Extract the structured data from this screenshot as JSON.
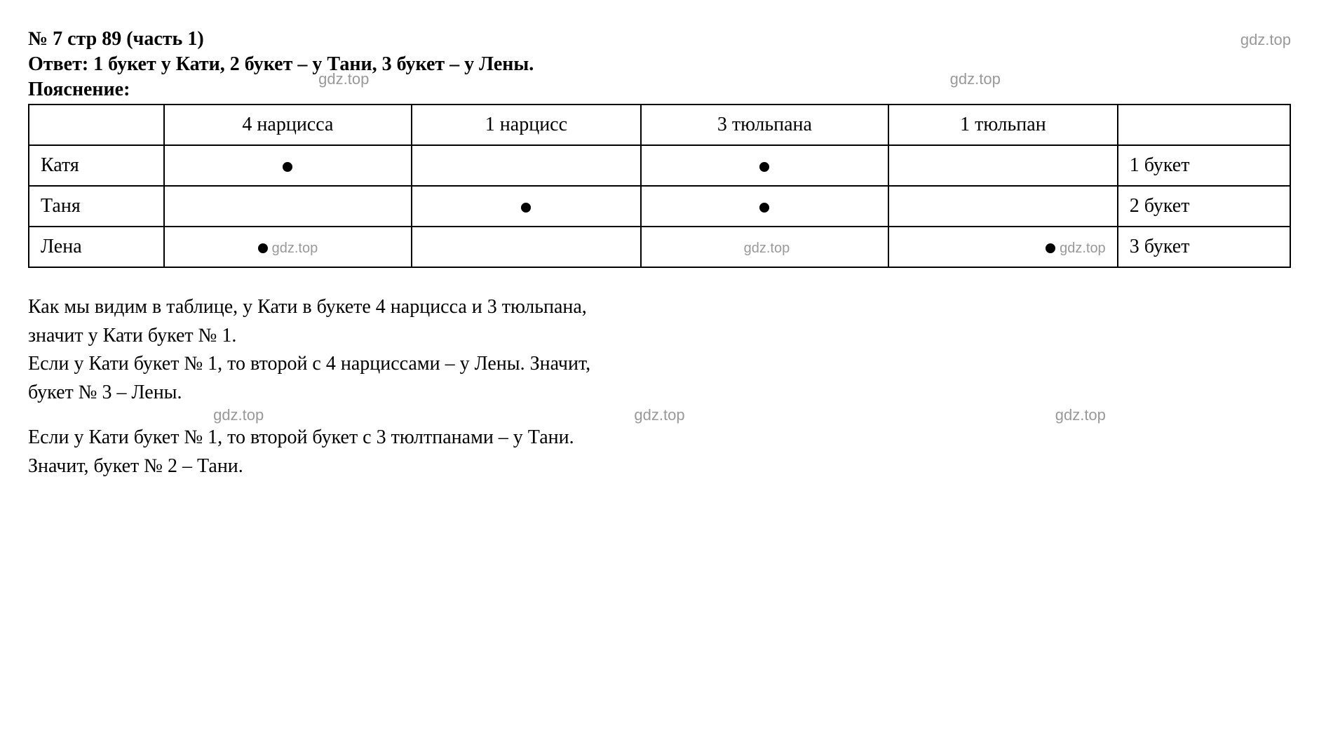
{
  "header": {
    "title": "№ 7 стр 89 (часть 1)",
    "watermark": "gdz.top"
  },
  "answer": "Ответ: 1 букет у Кати, 2 букет – у Тани, 3 букет – у Лены.",
  "explanation_label": "Пояснение:",
  "watermarks_row1": [
    "gdz.top",
    "gdz.top"
  ],
  "table": {
    "headers": [
      "",
      "4 нарцисса",
      "1 нарцисс",
      "3 тюльпана",
      "1 тюльпан",
      ""
    ],
    "rows": [
      {
        "name": "Катя",
        "cells": [
          true,
          false,
          true,
          false
        ],
        "result": "1 букет",
        "wm": [
          "",
          "",
          "",
          ""
        ]
      },
      {
        "name": "Таня",
        "cells": [
          false,
          true,
          true,
          false
        ],
        "result": "2 букет",
        "wm": [
          "",
          "",
          "",
          ""
        ]
      },
      {
        "name": "Лена",
        "cells": [
          true,
          false,
          false,
          true
        ],
        "result": "3 букет",
        "wm": [
          "gdz.top",
          "",
          "gdz.top",
          "gdz.top"
        ]
      }
    ]
  },
  "paragraph": {
    "line1": "Как мы видим в таблице, у Кати в букете 4 нарцисса и 3 тюльпана,",
    "line2": "значит у Кати букет № 1.",
    "line3": "Если у Кати букет № 1, то второй  с 4 нарциссами – у Лены. Значит,",
    "line4": "букет № 3 – Лены.",
    "line5": "Если у Кати букет № 1, то второй букет с 3 тюлтпанами – у Тани.",
    "line6": "Значит, букет № 2 – Тани."
  },
  "watermarks_row2": [
    "gdz.top",
    "gdz.top",
    "gdz.top"
  ],
  "colors": {
    "text": "#000000",
    "background": "#ffffff",
    "watermark": "#999999",
    "border": "#000000"
  }
}
